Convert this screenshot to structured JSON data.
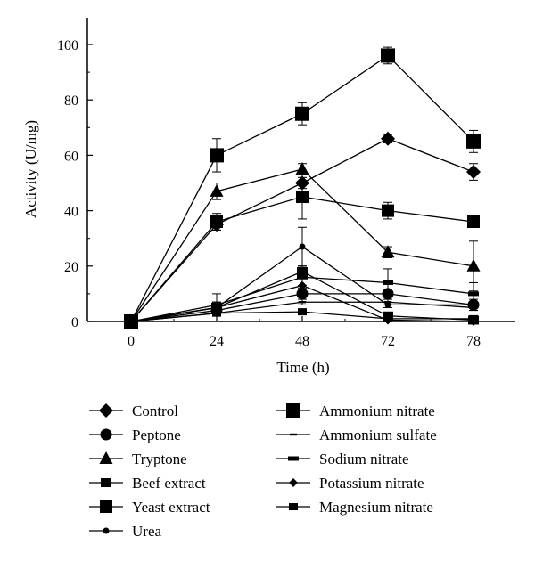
{
  "chart_data": {
    "type": "line",
    "xlabel": "Time (h)",
    "ylabel": "Activity (U/mg)",
    "x": [
      0,
      24,
      48,
      72,
      78
    ],
    "x_tick_labels": [
      "0",
      "24",
      "48",
      "72",
      "78"
    ],
    "ylim": [
      0,
      110
    ],
    "y_ticks": [
      0,
      20,
      40,
      60,
      80,
      100
    ],
    "grid": false,
    "legend_position": "bottom",
    "series": [
      {
        "name": "Control",
        "marker": "diamond",
        "values": [
          0,
          35,
          50,
          66,
          54
        ],
        "errors": [
          0,
          2,
          2,
          1.5,
          3
        ]
      },
      {
        "name": "Peptone",
        "marker": "circle",
        "values": [
          0,
          4,
          10,
          10,
          6
        ],
        "errors": [
          0,
          1.5,
          3,
          1,
          2
        ]
      },
      {
        "name": "Tryptone",
        "marker": "triangle",
        "values": [
          0,
          47,
          55,
          25,
          20
        ],
        "errors": [
          0,
          3,
          2,
          2,
          9
        ]
      },
      {
        "name": "Beef extract",
        "marker": "square",
        "values": [
          0,
          5,
          18,
          2,
          0.5
        ],
        "errors": [
          0,
          2,
          2,
          1,
          0.5
        ]
      },
      {
        "name": "Yeast extract",
        "marker": "bowtie",
        "values": [
          0,
          36,
          45,
          40,
          36
        ],
        "errors": [
          0,
          3,
          8,
          3,
          2
        ]
      },
      {
        "name": "Urea",
        "marker": "small-circle",
        "values": [
          0,
          5,
          27,
          6,
          6
        ],
        "errors": [
          0,
          2,
          7,
          1,
          1
        ]
      },
      {
        "name": "Ammonium nitrate",
        "marker": "big-square",
        "values": [
          0,
          60,
          75,
          96,
          65
        ],
        "errors": [
          0,
          6,
          4,
          3,
          4
        ]
      },
      {
        "name": "Ammonium sulfate",
        "marker": "dash",
        "values": [
          0,
          3,
          7,
          7,
          5
        ],
        "errors": [
          0,
          1,
          1,
          1,
          1
        ]
      },
      {
        "name": "Sodium nitrate",
        "marker": "bar",
        "values": [
          0,
          6,
          16,
          14,
          10
        ],
        "errors": [
          0,
          4,
          4,
          5,
          4
        ]
      },
      {
        "name": "Potassium nitrate",
        "marker": "small-diamond",
        "values": [
          0,
          5,
          13,
          0.5,
          0
        ],
        "errors": [
          0,
          2,
          3,
          0.5,
          0
        ]
      },
      {
        "name": "Magnesium nitrate",
        "marker": "small-square",
        "values": [
          0,
          3,
          3.5,
          1,
          1
        ],
        "errors": [
          0,
          1,
          1,
          0.5,
          0.5
        ]
      }
    ]
  }
}
